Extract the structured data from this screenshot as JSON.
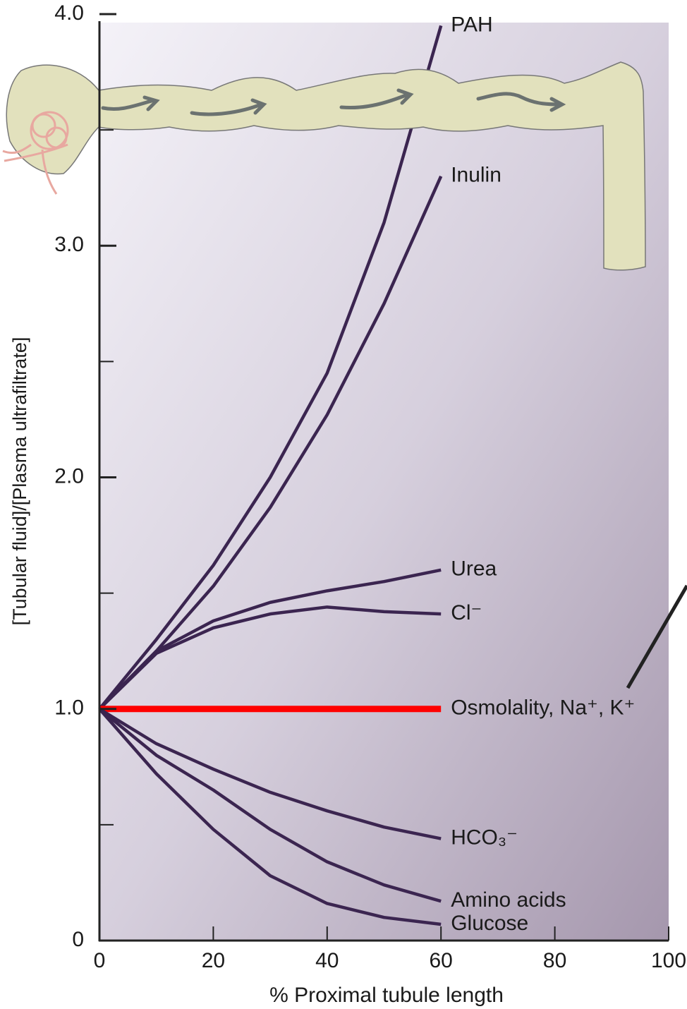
{
  "chart_data": {
    "type": "line",
    "x_label": "% Proximal tubule length",
    "y_label": "[Tubular fluid]/[Plasma ultrafiltrate]",
    "x": [
      0,
      10,
      20,
      30,
      40,
      50,
      60
    ],
    "xlim": [
      0,
      100
    ],
    "xticks": [
      0,
      20,
      40,
      60,
      80,
      100
    ],
    "ylim": [
      0,
      4
    ],
    "yticks": [
      0,
      {
        "value": 1,
        "label": "1.0"
      },
      {
        "value": 2,
        "label": "2.0"
      },
      {
        "value": 3,
        "label": "3.0"
      },
      {
        "value": 4,
        "label": "4.0"
      }
    ],
    "yminor_ticks": [
      0.5,
      1.5,
      2.5,
      3.5
    ],
    "series": [
      {
        "name": "PAH",
        "color": "#3b2550",
        "values": [
          1.0,
          1.3,
          1.62,
          2.0,
          2.45,
          3.1,
          3.95
        ]
      },
      {
        "name": "Inulin",
        "color": "#3b2550",
        "values": [
          1.0,
          1.25,
          1.53,
          1.87,
          2.27,
          2.75,
          3.3
        ]
      },
      {
        "name": "Urea",
        "color": "#3b2550",
        "values": [
          1.0,
          1.25,
          1.38,
          1.46,
          1.51,
          1.55,
          1.6
        ]
      },
      {
        "name": "Cl⁻",
        "color": "#3b2550",
        "values": [
          1.0,
          1.24,
          1.35,
          1.41,
          1.44,
          1.42,
          1.41
        ]
      },
      {
        "name": "Osmolality, Na⁺, K⁺",
        "color": "#ff0000",
        "values": [
          1.0,
          1.0,
          1.0,
          1.0,
          1.0,
          1.0,
          1.0
        ]
      },
      {
        "name": "HCO₃⁻",
        "color": "#3b2550",
        "values": [
          1.0,
          0.85,
          0.74,
          0.64,
          0.56,
          0.49,
          0.44
        ]
      },
      {
        "name": "Amino acids",
        "color": "#3b2550",
        "values": [
          1.0,
          0.8,
          0.65,
          0.48,
          0.34,
          0.24,
          0.17
        ]
      },
      {
        "name": "Glucose",
        "color": "#3b2550",
        "values": [
          1.0,
          0.72,
          0.48,
          0.28,
          0.16,
          0.1,
          0.07
        ]
      }
    ]
  }
}
